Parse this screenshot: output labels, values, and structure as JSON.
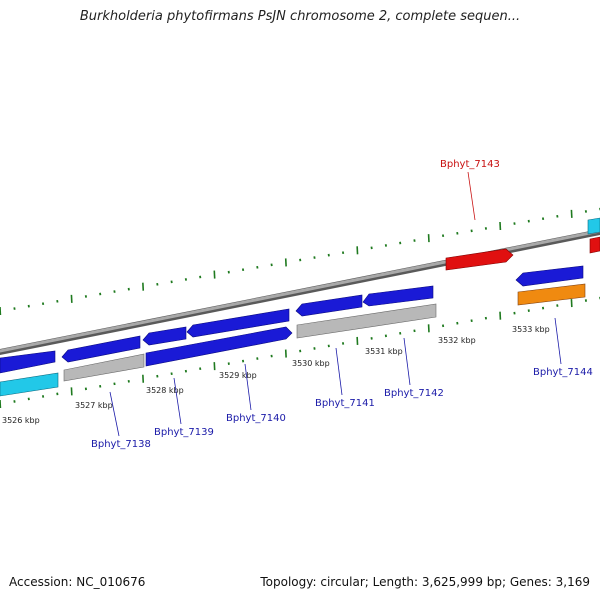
{
  "title": "Burkholderia phytofirmans PsJN chromosome 2, complete sequen...",
  "footer": {
    "accession": "Accession: NC_010676",
    "topology": "Topology: circular; Length: 3,625,999 bp; Genes: 3,169"
  },
  "colors": {
    "background": "#ffffff",
    "backbone": "#8a8a8a",
    "tick": "#1f7a1f",
    "gene_blue": "#1a1ad6",
    "gene_grey": "#b8b8b8",
    "gene_cyan": "#22c8e8",
    "gene_red": "#e01010",
    "gene_orange": "#f08a10",
    "label_blue": "#1a1aa8",
    "label_red": "#c81010"
  },
  "ticks": [
    "3526 kbp",
    "3527 kbp",
    "3528 kbp",
    "3529 kbp",
    "3530 kbp",
    "3531 kbp",
    "3532 kbp",
    "3533 kbp"
  ],
  "gene_labels": [
    {
      "name": "Bphyt_7138",
      "color": "blue"
    },
    {
      "name": "Bphyt_7139",
      "color": "blue"
    },
    {
      "name": "Bphyt_7140",
      "color": "blue"
    },
    {
      "name": "Bphyt_7141",
      "color": "blue"
    },
    {
      "name": "Bphyt_7142",
      "color": "blue"
    },
    {
      "name": "Bphyt_7143",
      "color": "red"
    },
    {
      "name": "Bphyt_7144",
      "color": "blue"
    }
  ]
}
